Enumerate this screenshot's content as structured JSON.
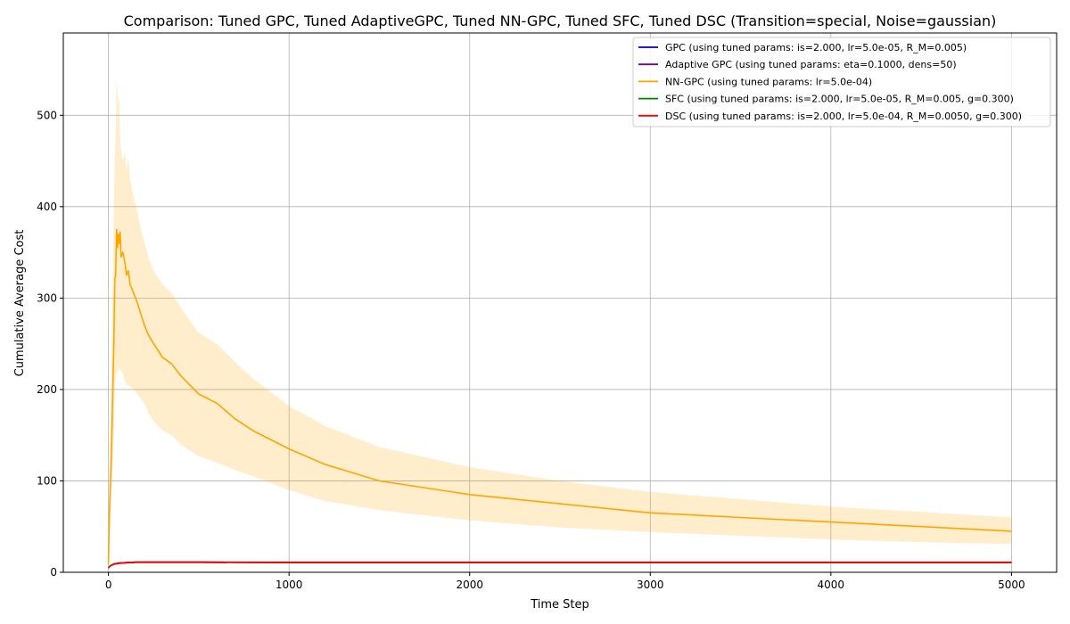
{
  "chart_data": {
    "type": "line",
    "title": "Comparison: Tuned GPC, Tuned AdaptiveGPC, Tuned NN-GPC, Tuned SFC, Tuned DSC (Transition=special, Noise=gaussian)",
    "xlabel": "Time Step",
    "ylabel": "Cumulative Average Cost",
    "xlim": [
      -250,
      5250
    ],
    "ylim": [
      0,
      590
    ],
    "xticks": [
      0,
      1000,
      2000,
      3000,
      4000,
      5000
    ],
    "yticks": [
      0,
      100,
      200,
      300,
      400,
      500
    ],
    "grid": true,
    "legend_position": "top-right",
    "series": [
      {
        "name": "GPC  (using tuned params: is=2.000, lr=5.0e-05, R_M=0.005)",
        "color": "#0000cc",
        "x": [
          0,
          10,
          30,
          60,
          100,
          150,
          200,
          300,
          500,
          1000,
          2000,
          3000,
          4000,
          5000
        ],
        "y": [
          5,
          7,
          9,
          10,
          10.5,
          11,
          11,
          11,
          11,
          10.8,
          10.8,
          10.8,
          10.8,
          10.8
        ],
        "band_lower": [
          4,
          6,
          8,
          9,
          9.5,
          10,
          10,
          10,
          10,
          10,
          10,
          10,
          10,
          10
        ],
        "band_upper": [
          6,
          8,
          10,
          11,
          11.5,
          12,
          12,
          12,
          12,
          11.8,
          11.8,
          11.8,
          11.8,
          11.8
        ]
      },
      {
        "name": "Adaptive GPC  (using tuned params: eta=0.1000, dens=50)",
        "color": "#800080",
        "x": [
          0,
          10,
          30,
          60,
          100,
          150,
          200,
          300,
          500,
          1000,
          2000,
          3000,
          4000,
          5000
        ],
        "y": [
          5,
          7,
          9,
          10,
          10.5,
          11,
          11,
          11,
          11,
          10.8,
          10.8,
          10.8,
          10.8,
          10.8
        ],
        "band_lower": [
          4,
          6,
          8,
          9,
          9.5,
          10,
          10,
          10,
          10,
          10,
          10,
          10,
          10,
          10
        ],
        "band_upper": [
          6,
          8,
          10,
          11,
          11.5,
          12,
          12,
          12,
          12,
          11.8,
          11.8,
          11.8,
          11.8,
          11.8
        ]
      },
      {
        "name": "NN-GPC  (using tuned params: lr=5.0e-04)",
        "color": "#ffa500",
        "x": [
          0,
          5,
          15,
          30,
          35,
          40,
          45,
          50,
          55,
          60,
          65,
          70,
          80,
          90,
          100,
          110,
          120,
          140,
          160,
          180,
          200,
          220,
          250,
          300,
          350,
          400,
          450,
          500,
          600,
          700,
          800,
          1000,
          1200,
          1500,
          2000,
          2500,
          3000,
          3500,
          4000,
          4500,
          5000
        ],
        "y": [
          10,
          60,
          120,
          250,
          320,
          325,
          375,
          355,
          370,
          360,
          372,
          345,
          350,
          340,
          325,
          330,
          315,
          305,
          295,
          282,
          270,
          260,
          250,
          235,
          228,
          215,
          205,
          195,
          185,
          168,
          155,
          135,
          118,
          100,
          85,
          75,
          65,
          60,
          55,
          50,
          45
        ],
        "band_lower": [
          5,
          30,
          80,
          150,
          200,
          215,
          220,
          215,
          225,
          222,
          222,
          220,
          218,
          210,
          205,
          205,
          203,
          200,
          195,
          190,
          185,
          175,
          165,
          155,
          150,
          140,
          133,
          127,
          120,
          112,
          105,
          90,
          78,
          68,
          57,
          49,
          44,
          40,
          36,
          33,
          31
        ],
        "band_upper": [
          15,
          100,
          200,
          400,
          450,
          480,
          538,
          525,
          512,
          520,
          470,
          460,
          450,
          460,
          440,
          455,
          430,
          410,
          395,
          375,
          360,
          345,
          330,
          315,
          305,
          290,
          275,
          262,
          250,
          230,
          212,
          182,
          160,
          137,
          115,
          100,
          88,
          80,
          72,
          66,
          60
        ]
      },
      {
        "name": "SFC  (using tuned params: is=2.000, lr=5.0e-05, R_M=0.005, g=0.300)",
        "color": "#008000",
        "x": [
          0,
          10,
          30,
          60,
          100,
          150,
          200,
          300,
          500,
          1000,
          2000,
          3000,
          4000,
          5000
        ],
        "y": [
          5,
          7,
          9,
          10,
          10.5,
          11,
          11,
          11,
          11,
          10.8,
          10.8,
          10.8,
          10.8,
          10.8
        ],
        "band_lower": [
          4,
          6,
          8,
          9,
          9.5,
          10,
          10,
          10,
          10,
          10,
          10,
          10,
          10,
          10
        ],
        "band_upper": [
          6,
          8,
          10,
          11,
          11.5,
          12,
          12,
          12,
          12,
          11.8,
          11.8,
          11.8,
          11.8,
          11.8
        ]
      },
      {
        "name": "DSC  (using tuned params: is=2.000, lr=5.0e-04, R_M=0.0050, g=0.300)",
        "color": "#ff0000",
        "x": [
          0,
          10,
          30,
          60,
          100,
          150,
          200,
          300,
          500,
          1000,
          2000,
          3000,
          4000,
          5000
        ],
        "y": [
          5,
          7,
          9,
          10,
          10.5,
          11,
          11,
          11,
          11,
          10.8,
          10.8,
          10.8,
          10.8,
          10.8
        ],
        "band_lower": [
          4,
          6,
          8,
          9,
          9.5,
          10,
          10,
          10,
          10,
          10,
          10,
          10,
          10,
          10
        ],
        "band_upper": [
          6,
          8,
          10,
          11,
          11.5,
          12,
          12,
          12,
          12,
          11.8,
          11.8,
          11.8,
          11.8,
          11.8
        ]
      }
    ]
  }
}
